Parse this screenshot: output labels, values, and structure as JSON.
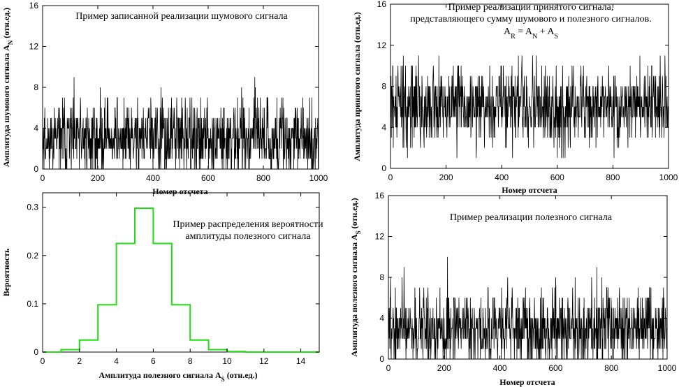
{
  "colors": {
    "signal": "#000000",
    "distribution": "#22dd11"
  },
  "chart_data": [
    {
      "id": "noise",
      "type": "line",
      "title_lines": [
        "Пример записанной реализации шумового сигнала"
      ],
      "xlabel": "Номер отсчета",
      "ylabel": "Амплитуда шумового сигнала A",
      "ylabel_sub": "N",
      "ylabel_tail": " (отн.ед.)",
      "xlim": [
        0,
        1000
      ],
      "ylim": [
        0,
        16
      ],
      "x_ticks": [
        0,
        200,
        400,
        600,
        800,
        1000
      ],
      "y_ticks": [
        0,
        4,
        8,
        12,
        16
      ],
      "series": [
        {
          "samples": 1000,
          "value_range": [
            0,
            10
          ],
          "typical_level": 3
        }
      ]
    },
    {
      "id": "received",
      "type": "line",
      "title_lines": [
        "Пример реализации принятого сигнала,",
        "представляющего сумму шумового и полезного сигналов."
      ],
      "formula": {
        "r": "A",
        "r_sub": "R",
        "eq": " = ",
        "n": "A",
        "n_sub": "N",
        "plus": " + ",
        "s": "A",
        "s_sub": "S"
      },
      "xlabel": "Номер отсчета",
      "ylabel": "Амплитуда принятого сигнала (отн.ед.)",
      "xlim": [
        0,
        1000
      ],
      "ylim": [
        0,
        16
      ],
      "x_ticks": [
        0,
        200,
        400,
        600,
        800,
        1000
      ],
      "y_ticks": [
        0,
        4,
        8,
        12,
        16
      ],
      "series": [
        {
          "samples": 1000,
          "value_range": [
            0,
            13
          ],
          "typical_level": 6
        }
      ]
    },
    {
      "id": "distribution",
      "type": "line",
      "title_lines": [
        "Пример распределения вероятности",
        "амплитуды полезного сигнала"
      ],
      "xlabel": "Амплитуда полезного сигнала A",
      "xlabel_sub": "S",
      "xlabel_tail": " (отн.ед.)",
      "ylabel": "Вероятность",
      "xlim": [
        0,
        15
      ],
      "ylim": [
        0,
        0.33
      ],
      "x_ticks": [
        0,
        2,
        4,
        6,
        8,
        10,
        12,
        14
      ],
      "y_ticks": [
        0,
        0.1,
        0.2,
        0.3
      ],
      "y_tick_labels": [
        "0",
        "0.1",
        "0.2",
        "0.3"
      ],
      "steps": {
        "x": [
          0,
          1,
          2,
          3,
          4,
          5,
          6,
          7,
          8,
          9,
          10,
          11,
          12,
          13,
          14,
          15
        ],
        "y": [
          0.0,
          0.005,
          0.025,
          0.098,
          0.225,
          0.298,
          0.225,
          0.098,
          0.025,
          0.005,
          0.001,
          0.0,
          0.0,
          0.0,
          0.0,
          0.0
        ]
      }
    },
    {
      "id": "useful",
      "type": "line",
      "title_lines": [
        "Пример реализации полезного сигнала"
      ],
      "xlabel": "Номер отсчета",
      "ylabel": "Амплитуда полезного сигнала A",
      "ylabel_sub": "S",
      "ylabel_tail": " (отн.ед.)",
      "xlim": [
        0,
        1000
      ],
      "ylim": [
        0,
        16
      ],
      "x_ticks": [
        0,
        200,
        400,
        600,
        800,
        1000
      ],
      "y_ticks": [
        0,
        4,
        8,
        12,
        16
      ],
      "series": [
        {
          "samples": 1000,
          "value_range": [
            0,
            10
          ],
          "typical_level": 3
        }
      ]
    }
  ]
}
